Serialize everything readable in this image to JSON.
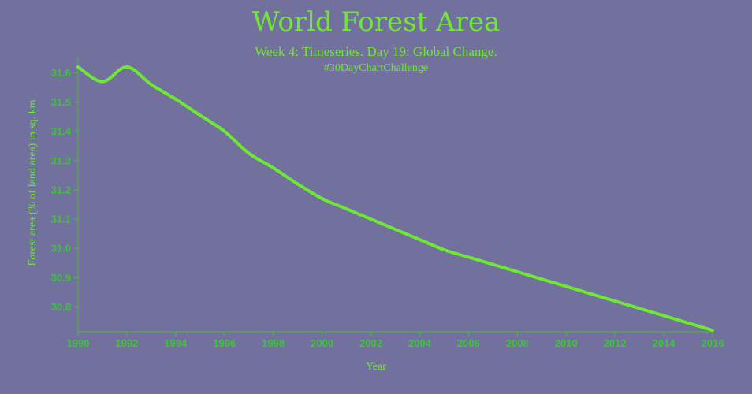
{
  "chart_data": {
    "type": "line",
    "title": "World Forest Area",
    "subtitle": "Week 4: Timeseries. Day 19: Global Change.",
    "caption": "#30DayChartChallenge",
    "xlabel": "Year",
    "ylabel": "Forest area (% of land area) in sq. km",
    "xlim": [
      1990,
      2016
    ],
    "ylim": [
      30.715,
      31.655
    ],
    "x_ticks": [
      1990,
      1992,
      1994,
      1996,
      1998,
      2000,
      2002,
      2004,
      2006,
      2008,
      2010,
      2012,
      2014,
      2016
    ],
    "y_ticks": [
      30.8,
      30.9,
      31.0,
      31.1,
      31.2,
      31.3,
      31.4,
      31.5,
      31.6
    ],
    "y_tick_labels": [
      "30.8",
      "30.9",
      "31.0",
      "31.1",
      "31.2",
      "31.3",
      "31.4",
      "31.5",
      "31.6"
    ],
    "grid": false,
    "x": [
      1990,
      1991,
      1992,
      1993,
      1994,
      1995,
      1996,
      1997,
      1998,
      1999,
      2000,
      2001,
      2002,
      2003,
      2004,
      2005,
      2006,
      2007,
      2008,
      2009,
      2010,
      2011,
      2012,
      2013,
      2014,
      2015,
      2016
    ],
    "values": [
      31.62,
      31.57,
      31.62,
      31.56,
      31.51,
      31.455,
      31.4,
      31.325,
      31.275,
      31.22,
      31.17,
      31.135,
      31.1,
      31.065,
      31.03,
      30.995,
      30.97,
      30.945,
      30.92,
      30.895,
      30.87,
      30.845,
      30.82,
      30.795,
      30.77,
      30.745,
      30.72
    ],
    "color": "#6ee832",
    "background": "#72709d"
  }
}
